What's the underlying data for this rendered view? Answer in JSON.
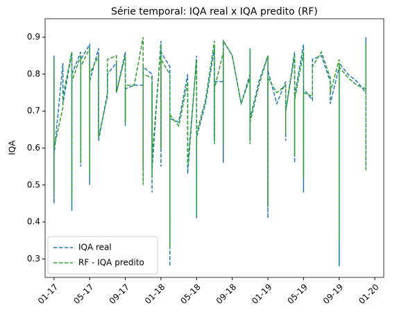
{
  "chart_data": {
    "type": "line",
    "title": "Série temporal: IQA real x IQA predito (RF)",
    "y_label": "IQA",
    "x": [
      "01-17",
      "01-17",
      "01-17",
      "01-17",
      "02-17",
      "02-17",
      "03-17",
      "03-17",
      "03-17",
      "04-17",
      "04-17",
      "04-17",
      "05-17",
      "05-17",
      "05-17",
      "05-17",
      "06-17",
      "06-17",
      "07-17",
      "07-17",
      "08-17",
      "08-17",
      "09-17",
      "09-17",
      "09-17",
      "10-17",
      "11-17",
      "11-17",
      "11-17",
      "12-17",
      "12-17",
      "12-17",
      "12-17",
      "01-18",
      "01-18",
      "01-18",
      "02-18",
      "02-18",
      "02-18",
      "03-18",
      "04-18",
      "04-18",
      "04-18",
      "05-18",
      "05-18",
      "05-18",
      "06-18",
      "07-18",
      "07-18",
      "07-18",
      "08-18",
      "08-18",
      "08-18",
      "09-18",
      "10-18",
      "11-18",
      "11-18",
      "11-18",
      "11-18",
      "12-18",
      "01-19",
      "01-19",
      "01-19",
      "02-19",
      "03-19",
      "03-19",
      "03-19",
      "04-19",
      "04-19",
      "04-19",
      "05-19",
      "05-19",
      "05-19",
      "06-19",
      "06-19",
      "07-19",
      "08-19",
      "08-19",
      "09-19",
      "09-19",
      "09-19",
      "09-19",
      "10-19",
      "11-19",
      "12-19",
      "12-19",
      "12-19"
    ],
    "series": [
      {
        "name": "IQA real",
        "color": "#1f77b4",
        "dash": true,
        "values": [
          0.85,
          0.45,
          0.82,
          0.58,
          0.83,
          0.72,
          0.86,
          0.43,
          0.8,
          0.86,
          0.55,
          0.84,
          0.88,
          0.5,
          0.85,
          0.78,
          0.87,
          0.62,
          0.75,
          0.8,
          0.83,
          0.75,
          0.86,
          0.66,
          0.76,
          0.77,
          0.77,
          0.55,
          0.82,
          0.8,
          0.48,
          0.78,
          0.54,
          0.89,
          0.55,
          0.86,
          0.82,
          0.28,
          0.68,
          0.67,
          0.8,
          0.66,
          0.53,
          0.85,
          0.41,
          0.63,
          0.72,
          0.87,
          0.62,
          0.78,
          0.78,
          0.56,
          0.89,
          0.85,
          0.72,
          0.8,
          0.62,
          0.87,
          0.68,
          0.78,
          0.85,
          0.41,
          0.81,
          0.72,
          0.78,
          0.62,
          0.7,
          0.86,
          0.56,
          0.74,
          0.88,
          0.48,
          0.76,
          0.73,
          0.84,
          0.85,
          0.78,
          0.72,
          0.82,
          0.78,
          0.28,
          0.83,
          0.8,
          0.78,
          0.75,
          0.9,
          0.55
        ]
      },
      {
        "name": "RF - IQA predito",
        "color": "#2ca02c",
        "dash": true,
        "values": [
          0.84,
          0.48,
          0.79,
          0.6,
          0.71,
          0.74,
          0.86,
          0.46,
          0.78,
          0.85,
          0.56,
          0.82,
          0.87,
          0.53,
          0.83,
          0.8,
          0.85,
          0.63,
          0.74,
          0.84,
          0.85,
          0.75,
          0.85,
          0.67,
          0.77,
          0.77,
          0.9,
          0.5,
          0.8,
          0.79,
          0.52,
          0.77,
          0.57,
          0.88,
          0.6,
          0.84,
          0.8,
          0.33,
          0.69,
          0.66,
          0.78,
          0.65,
          0.55,
          0.84,
          0.42,
          0.64,
          0.73,
          0.89,
          0.61,
          0.76,
          0.86,
          0.61,
          0.89,
          0.85,
          0.72,
          0.79,
          0.61,
          0.87,
          0.67,
          0.77,
          0.85,
          0.44,
          0.79,
          0.75,
          0.77,
          0.64,
          0.7,
          0.85,
          0.58,
          0.73,
          0.86,
          0.52,
          0.75,
          0.74,
          0.82,
          0.86,
          0.79,
          0.75,
          0.84,
          0.76,
          0.35,
          0.82,
          0.79,
          0.77,
          0.76,
          0.88,
          0.54
        ]
      }
    ],
    "xlim": [
      "12-16",
      "02-20"
    ],
    "xticks": [
      "01-17",
      "05-17",
      "09-17",
      "01-18",
      "05-18",
      "09-18",
      "01-19",
      "05-19",
      "09-19",
      "01-20"
    ],
    "ylim": [
      0.25,
      0.95
    ],
    "yticks": [
      0.3,
      0.4,
      0.5,
      0.6,
      0.7,
      0.8,
      0.9
    ],
    "grid": false,
    "legend": "lower left"
  }
}
